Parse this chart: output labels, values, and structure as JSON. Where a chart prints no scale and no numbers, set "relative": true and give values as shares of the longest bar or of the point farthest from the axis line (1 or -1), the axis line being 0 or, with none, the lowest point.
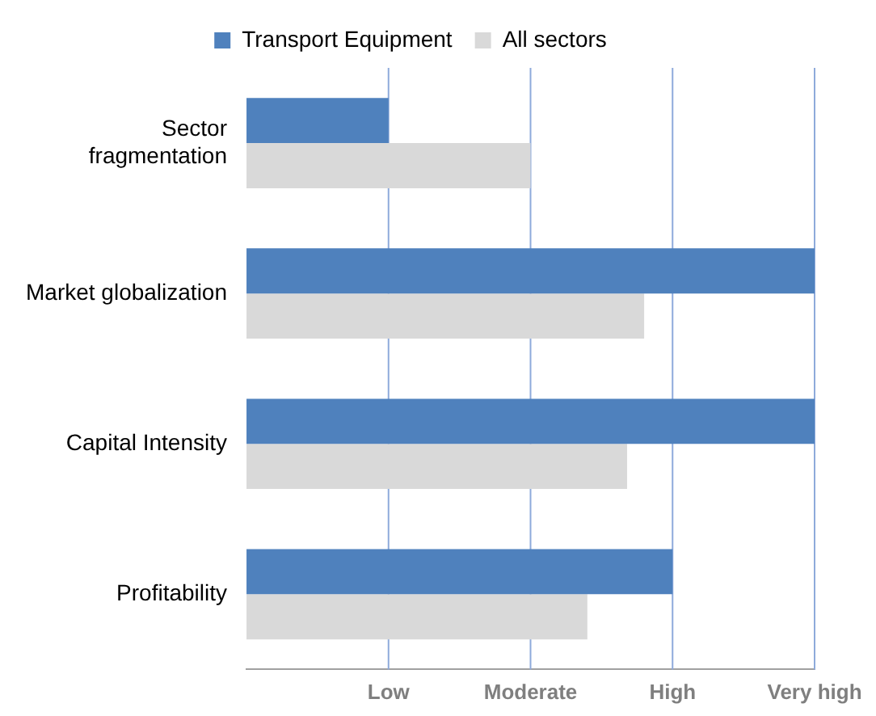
{
  "chart_data": {
    "type": "bar",
    "orientation": "horizontal",
    "relative": true,
    "categories": [
      "Sector fragmentation",
      "Market globalization",
      "Capital Intensity",
      "Profitability"
    ],
    "series": [
      {
        "name": "Transport Equipment",
        "color": "#4f81bd",
        "values": [
          0.25,
          1,
          1,
          0.75
        ]
      },
      {
        "name": "All sectors",
        "color": "#d9d9d9",
        "values": [
          0.5,
          0.7,
          0.67,
          0.6
        ]
      }
    ],
    "ref_lines": [
      {
        "axis": "x",
        "value": 0.25,
        "label": "Low",
        "color": "#8eaadb"
      },
      {
        "axis": "x",
        "value": 0.5,
        "label": "Moderate",
        "color": "#8eaadb"
      },
      {
        "axis": "x",
        "value": 0.75,
        "label": "High",
        "color": "#8eaadb"
      },
      {
        "axis": "x",
        "value": 1,
        "label": "Very high",
        "color": "#8eaadb"
      }
    ],
    "legend": "top"
  }
}
